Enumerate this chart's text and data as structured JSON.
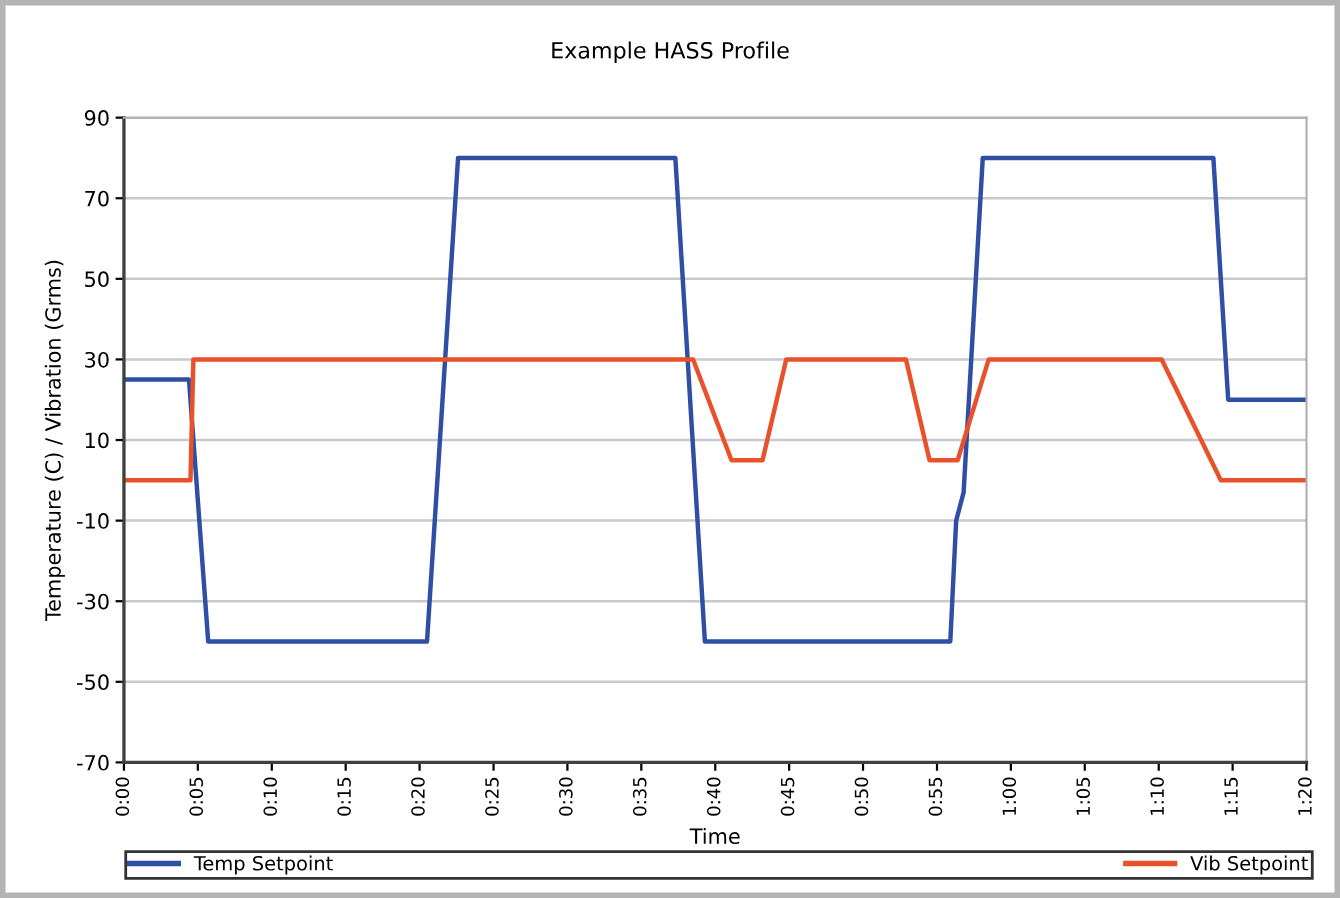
{
  "chart_data": {
    "type": "line",
    "title": "Example HASS Profile",
    "xlabel": "Time",
    "ylabel": "Temperature (C) / Vibration (Grms)",
    "series": [
      {
        "name": "Temp Setpoint",
        "color": "#2e4fa3",
        "x": [
          0,
          0.0733,
          0.095,
          0.3417,
          0.3767,
          0.6217,
          0.655,
          0.9317,
          0.9383,
          0.9467,
          0.9683,
          1.2283,
          1.245,
          1.3333
        ],
        "values": [
          25,
          25,
          -40,
          -40,
          80,
          80,
          -40,
          -40,
          -10,
          -3,
          80,
          80,
          20,
          20
        ]
      },
      {
        "name": "Vib Setpoint",
        "color": "#e8512a",
        "x": [
          0,
          0.075,
          0.0783,
          0.6417,
          0.685,
          0.72,
          0.7467,
          0.8817,
          0.9083,
          0.94,
          0.975,
          1.17,
          1.2367,
          1.3333
        ],
        "values": [
          0,
          0,
          30,
          30,
          5,
          5,
          30,
          30,
          5,
          5,
          30,
          30,
          0,
          0
        ]
      }
    ],
    "xlim": [
      0,
      1.3333
    ],
    "xticks": [
      {
        "value": 0,
        "label": "0:00"
      },
      {
        "value": 0.0833,
        "label": "0:05"
      },
      {
        "value": 0.1667,
        "label": "0:10"
      },
      {
        "value": 0.25,
        "label": "0:15"
      },
      {
        "value": 0.3333,
        "label": "0:20"
      },
      {
        "value": 0.4167,
        "label": "0:25"
      },
      {
        "value": 0.5,
        "label": "0:30"
      },
      {
        "value": 0.5833,
        "label": "0:35"
      },
      {
        "value": 0.6667,
        "label": "0:40"
      },
      {
        "value": 0.75,
        "label": "0:45"
      },
      {
        "value": 0.8333,
        "label": "0:50"
      },
      {
        "value": 0.9167,
        "label": "0:55"
      },
      {
        "value": 1,
        "label": "1:00"
      },
      {
        "value": 1.0833,
        "label": "1:05"
      },
      {
        "value": 1.1667,
        "label": "1:10"
      },
      {
        "value": 1.25,
        "label": "1:15"
      },
      {
        "value": 1.3333,
        "label": "1:20"
      }
    ],
    "ylim": [
      -70,
      90
    ],
    "yticks": [
      -70,
      -50,
      -30,
      -10,
      10,
      30,
      50,
      70,
      90
    ],
    "grid": "y",
    "legend": "bottom",
    "marker": "none",
    "line_style": "solid"
  }
}
